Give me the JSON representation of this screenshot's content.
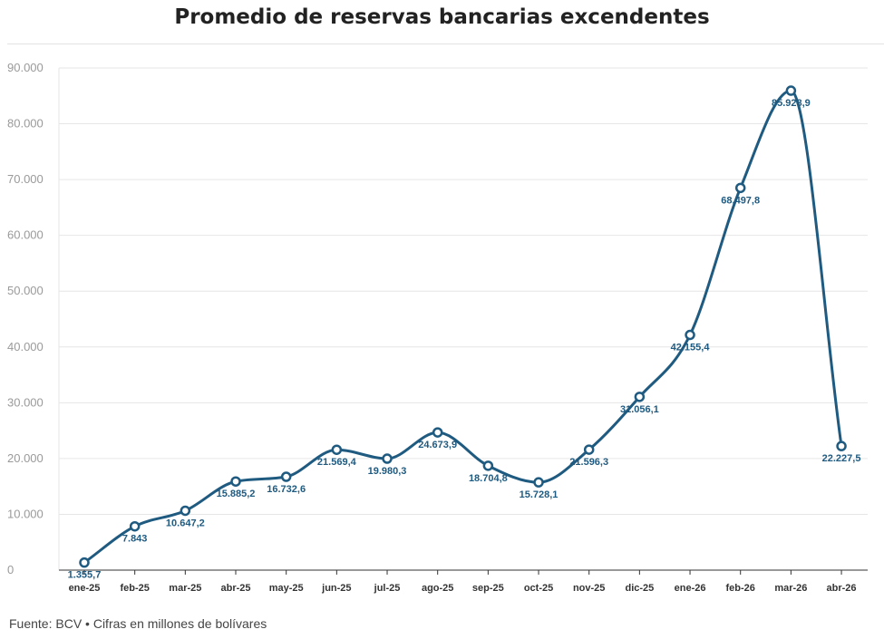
{
  "chart_data": {
    "type": "line",
    "title": "Promedio de reservas bancarias excendentes",
    "xlabel": "",
    "ylabel": "",
    "ylim": [
      0,
      90000
    ],
    "yticks": [
      0,
      10000,
      20000,
      30000,
      40000,
      50000,
      60000,
      70000,
      80000,
      90000
    ],
    "ytick_labels": [
      "0",
      "10.000",
      "20.000",
      "30.000",
      "40.000",
      "50.000",
      "60.000",
      "70.000",
      "80.000",
      "90.000"
    ],
    "categories": [
      "ene-25",
      "feb-25",
      "mar-25",
      "abr-25",
      "may-25",
      "jun-25",
      "jul-25",
      "ago-25",
      "sep-25",
      "oct-25",
      "nov-25",
      "dic-25",
      "ene-26",
      "feb-26",
      "mar-26",
      "abr-26"
    ],
    "series": [
      {
        "values": [
          1355.7,
          7843,
          10647.2,
          15885.2,
          16732.6,
          21569.4,
          19980.3,
          24673.9,
          18704.8,
          15728.1,
          21596.3,
          31056.1,
          42155.4,
          68497.8,
          85928.9,
          22227.5
        ],
        "labels": [
          "1.355,7",
          "7.843",
          "10.647,2",
          "15.885,2",
          "16.732,6",
          "21.569,4",
          "19.980,3",
          "24.673,9",
          "18.704,8",
          "15.728,1",
          "21.596,3",
          "31.056,1",
          "42.155,4",
          "68.497,8",
          "85.928,9",
          "22.227,5"
        ],
        "color": "#1f5a80"
      }
    ],
    "grid": true,
    "legend": "none"
  },
  "footer": "Fuente: BCV • Cifras en millones de bolívares"
}
